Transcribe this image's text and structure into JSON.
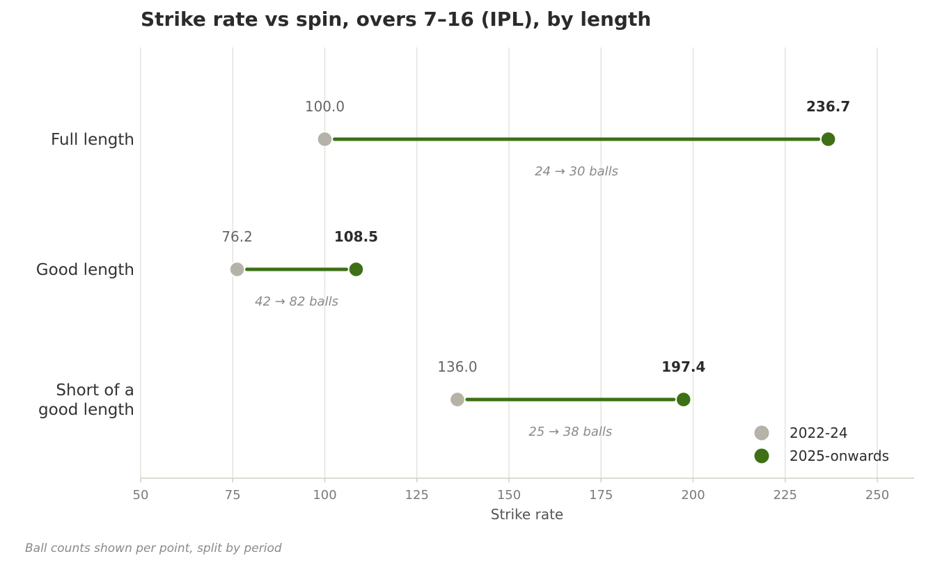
{
  "colors": {
    "before": "#b5b2a8",
    "after": "#3e7016",
    "connector": "#3e7016",
    "grid": "#e4e4dc",
    "axis": "#cfcfc4"
  },
  "chart_data": {
    "type": "dumbbell",
    "title": "Strike rate vs spin, overs 7–16 (IPL), by length",
    "xlabel": "Strike rate",
    "xlim": [
      50,
      260
    ],
    "xticks": [
      50,
      75,
      100,
      125,
      150,
      175,
      200,
      225,
      250
    ],
    "grid": true,
    "legend_position": "bottom-right",
    "series": [
      {
        "name": "2022-24",
        "key": "before"
      },
      {
        "name": "2025-onwards",
        "key": "after"
      }
    ],
    "categories": [
      {
        "label_lines": [
          "Full length"
        ],
        "before": 100.0,
        "after": 236.7,
        "before_label": "100.0",
        "after_label": "236.7",
        "balls_note": "24 → 30 balls"
      },
      {
        "label_lines": [
          "Good length"
        ],
        "before": 76.2,
        "after": 108.5,
        "before_label": "76.2",
        "after_label": "108.5",
        "balls_note": "42 → 82 balls"
      },
      {
        "label_lines": [
          "Short of a",
          "good length"
        ],
        "before": 136.0,
        "after": 197.4,
        "before_label": "136.0",
        "after_label": "197.4",
        "balls_note": "25 → 38 balls"
      }
    ],
    "footnote": "Ball counts shown per point, split by period"
  }
}
